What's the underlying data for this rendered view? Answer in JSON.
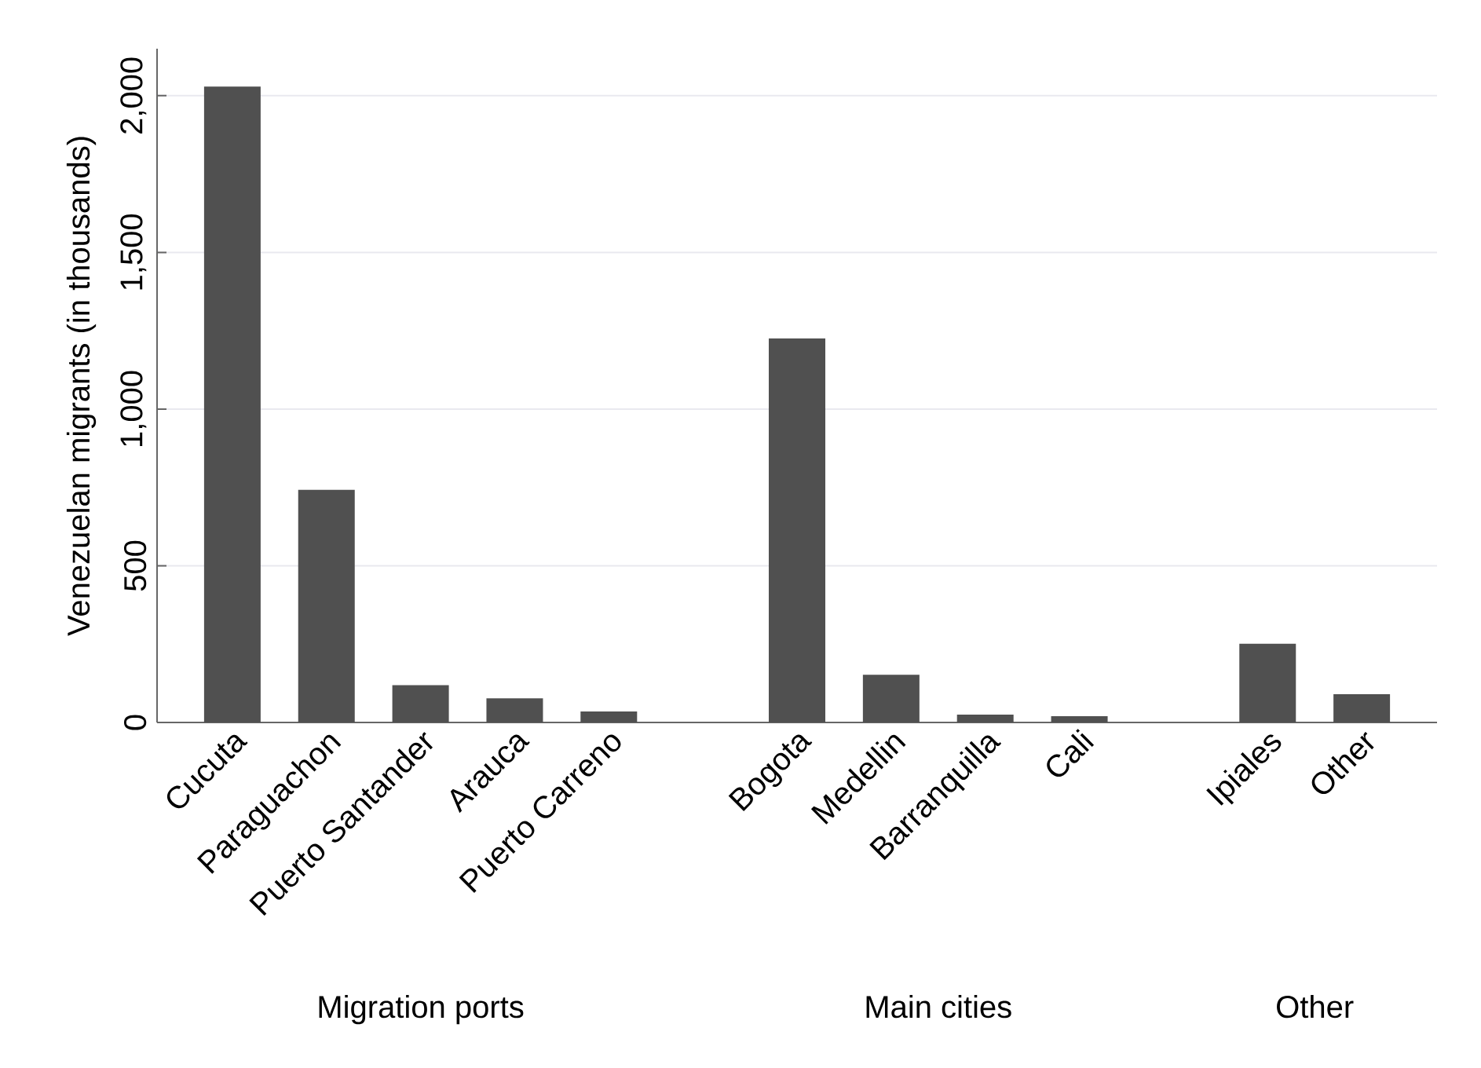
{
  "chart_data": {
    "type": "bar",
    "ylabel": "Venezuelan migrants (in thousands)",
    "categories": [
      "Cucuta",
      "Paraguachon",
      "Puerto Santander",
      "Arauca",
      "Puerto Carreno",
      null,
      "Bogota",
      "Medellin",
      "Barranquilla",
      "Cali",
      null,
      "Ipiales",
      "Other"
    ],
    "values": [
      2029,
      742,
      119,
      77,
      35,
      null,
      1225,
      152,
      25,
      20,
      null,
      251,
      90
    ],
    "color": "#505050",
    "ylim": [
      0,
      2150
    ],
    "yticks": [
      0,
      500,
      {
        "value": 1000,
        "label": "1,000"
      },
      {
        "value": 1500,
        "label": "1,500"
      },
      {
        "value": 2000,
        "label": "2,000"
      }
    ],
    "grid": "y",
    "annotations": [
      "Migration ports",
      "Main cities",
      "Other"
    ]
  }
}
